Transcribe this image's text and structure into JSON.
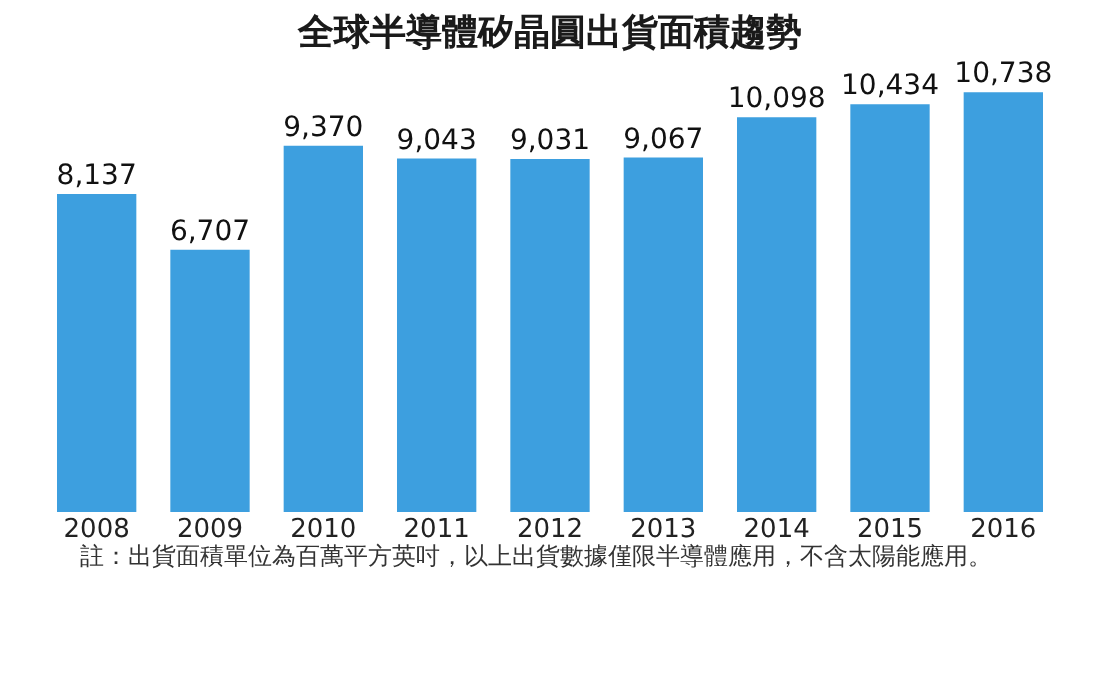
{
  "chart_data": {
    "type": "bar",
    "title": "全球半導體矽晶圓出貨面積趨勢",
    "categories": [
      "2008",
      "2009",
      "2010",
      "2011",
      "2012",
      "2013",
      "2014",
      "2015",
      "2016"
    ],
    "values": [
      8137,
      6707,
      9370,
      9043,
      9031,
      9067,
      10098,
      10434,
      10738
    ],
    "value_labels": [
      "8,137",
      "6,707",
      "9,370",
      "9,043",
      "9,031",
      "9,067",
      "10,098",
      "10,434",
      "10,738"
    ],
    "color": "#3d9fdf",
    "tick_labels": "x",
    "grid": false,
    "annotations": [
      "註：出貨面積單位為百萬平方英吋，以上出貨數據僅限半導體應用，不含太陽能應用。"
    ]
  }
}
